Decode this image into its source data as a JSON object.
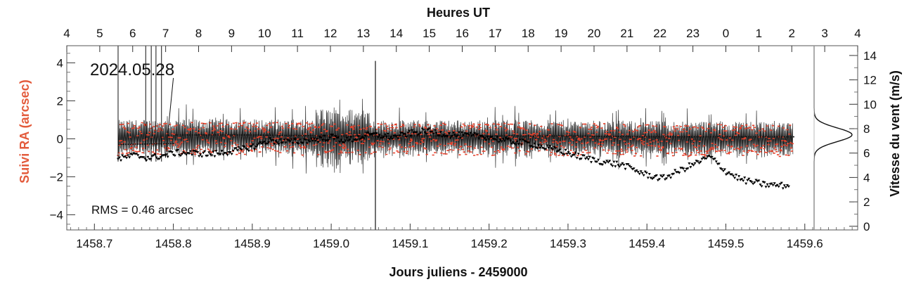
{
  "chart_data": {
    "type": "scatter",
    "title": "Heures UT",
    "date_label": "2024.05.28",
    "rms_label": "RMS = 0.46 arcsec",
    "xlabel": "Jours juliens - 2459000",
    "ylabel_left": "Suivi RA (arcsec)",
    "ylabel_right": "Vitesse du vent (m/s)",
    "xlim": [
      1458.665,
      1459.667
    ],
    "ylim_left": [
      -4.8,
      4.9
    ],
    "ylim_right": [
      -0.3,
      14.8
    ],
    "x_ticks": [
      1458.7,
      1458.8,
      1458.9,
      1459.0,
      1459.1,
      1459.2,
      1459.3,
      1459.4,
      1459.5,
      1459.6
    ],
    "x_tick_labels": [
      "1458.7",
      "1458.8",
      "1458.9",
      "1459.0",
      "1459.1",
      "1459.2",
      "1459.3",
      "1459.4",
      "1459.5",
      "1459.6"
    ],
    "top_ticks": [
      "4",
      "5",
      "6",
      "7",
      "8",
      "9",
      "10",
      "11",
      "12",
      "13",
      "14",
      "15",
      "16",
      "17",
      "18",
      "19",
      "20",
      "21",
      "22",
      "23",
      "0",
      "1",
      "2",
      "3",
      "4"
    ],
    "y_left_ticks": [
      4,
      2,
      0,
      -2,
      -4
    ],
    "y_left_tick_labels": [
      "4",
      "2",
      "0",
      "−2",
      "−4"
    ],
    "y_right_ticks": [
      14,
      12,
      10,
      8,
      6,
      4,
      2,
      0
    ],
    "y_right_tick_labels": [
      "14",
      "12",
      "10",
      "8",
      "6",
      "4",
      "2",
      "0"
    ],
    "colors": {
      "ra_tracking": "#e8402a",
      "wind": "#000000",
      "left_label": "#e35b3c",
      "right_label": "#000000",
      "axes": "#555555"
    },
    "series": [
      {
        "axis": "left",
        "style": "red points with black line, dense noisy band",
        "x_range": [
          1458.73,
          1459.585
        ],
        "center_values": {
          "x": [
            1458.73,
            1458.8,
            1458.9,
            1459.0,
            1459.1,
            1459.2,
            1459.3,
            1459.4,
            1459.5,
            1459.585
          ],
          "y": [
            0.0,
            0.05,
            0.05,
            0.0,
            0.0,
            0.0,
            0.0,
            -0.05,
            -0.05,
            -0.05
          ]
        },
        "band_halfwidth_arcsec": 0.9,
        "spike": {
          "x": 1459.056,
          "ymax": 4.1,
          "ymin": -4.8
        }
      },
      {
        "axis": "right",
        "style": "black dots",
        "x": [
          1458.73,
          1458.75,
          1458.77,
          1458.79,
          1458.8,
          1458.82,
          1458.85,
          1458.88,
          1458.9,
          1458.92,
          1458.95,
          1458.98,
          1459.0,
          1459.02,
          1459.05,
          1459.08,
          1459.1,
          1459.12,
          1459.15,
          1459.18,
          1459.2,
          1459.22,
          1459.25,
          1459.28,
          1459.3,
          1459.32,
          1459.35,
          1459.37,
          1459.4,
          1459.42,
          1459.45,
          1459.48,
          1459.5,
          1459.52,
          1459.55,
          1459.58
        ],
        "y": [
          5.5,
          5.8,
          5.6,
          5.8,
          6.0,
          6.0,
          5.9,
          6.2,
          6.5,
          7.0,
          6.9,
          7.1,
          7.3,
          7.0,
          7.5,
          7.3,
          7.6,
          7.8,
          7.5,
          7.4,
          7.3,
          7.0,
          6.8,
          6.3,
          6.0,
          5.6,
          5.2,
          5.0,
          4.2,
          3.9,
          4.8,
          5.7,
          4.5,
          3.8,
          3.4,
          3.3
        ]
      }
    ],
    "wind_histogram": {
      "peak_speed": 7.5,
      "halfwidth": 0.8
    }
  }
}
